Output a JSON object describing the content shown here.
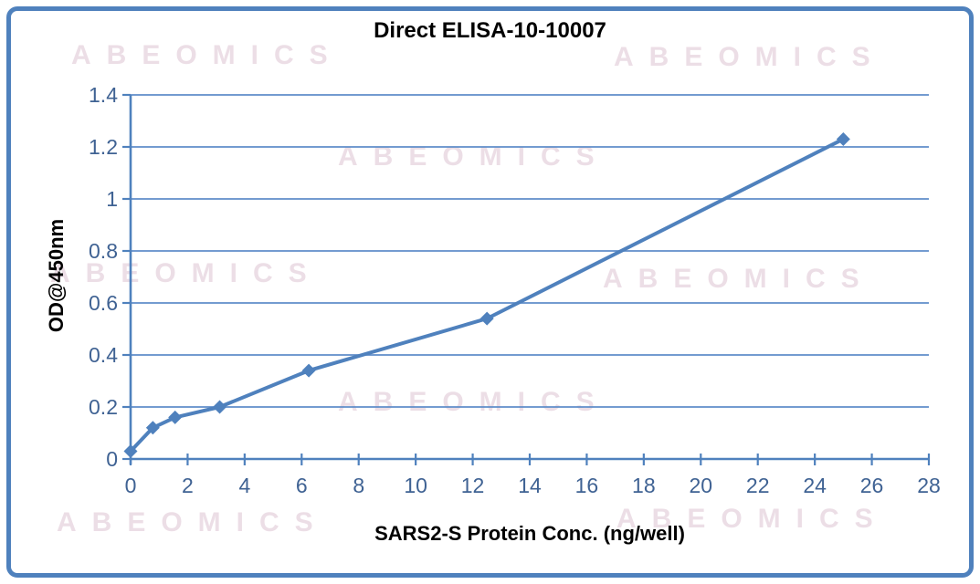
{
  "frame": {
    "border_color": "#4f81bd"
  },
  "watermark": {
    "text": "ABEOMICS",
    "color": "rgba(206,168,190,0.38)"
  },
  "chart_data": {
    "type": "line",
    "title": "Direct ELISA-10-10007",
    "xlabel": "SARS2-S Protein Conc. (ng/well)",
    "ylabel": "OD@450nm",
    "x": [
      0,
      0.78,
      1.56,
      3.125,
      6.25,
      12.5,
      25
    ],
    "y": [
      0.03,
      0.12,
      0.16,
      0.2,
      0.34,
      0.54,
      1.23
    ],
    "xlim": [
      0,
      28
    ],
    "ylim": [
      0,
      1.4
    ],
    "x_ticks": [
      0,
      2,
      4,
      6,
      8,
      10,
      12,
      14,
      16,
      18,
      20,
      22,
      24,
      26,
      28
    ],
    "y_ticks": [
      0,
      0.2,
      0.4,
      0.6,
      0.8,
      1,
      1.2,
      1.4
    ],
    "grid": "horizontal",
    "legend": "none",
    "marker": "diamond",
    "line_color": "#4f81bd",
    "axis_color": "#4f81bd",
    "grid_color": "#5f8dc9",
    "tick_label_color": "#3f6293"
  }
}
